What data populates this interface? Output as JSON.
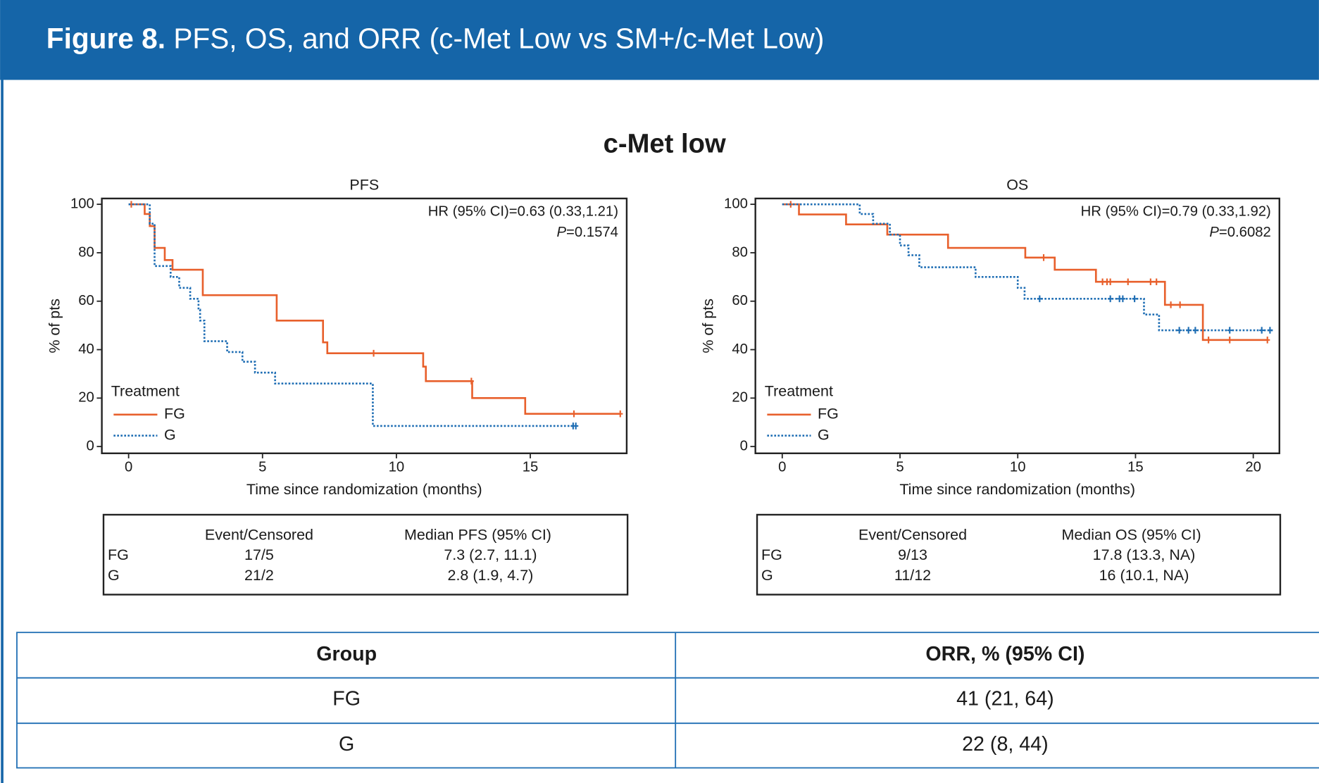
{
  "header": {
    "label": "Figure 8.",
    "title": "PFS, OS, and ORR (c-Met Low vs SM+/c-Met Low)"
  },
  "suptitle": "c-Met low",
  "chart_data": [
    {
      "type": "step",
      "title": "PFS",
      "xlabel": "Time since randomization (months)",
      "ylabel": "% of pts",
      "annotation": "HR (95% CI)=0.63 (0.33,1.21)",
      "p_value": "P=0.1574",
      "xlim": [
        -1.0,
        18.6
      ],
      "ylim": [
        -2.8,
        102.4
      ],
      "xticks": [
        0,
        5,
        10,
        15
      ],
      "yticks": [
        0,
        20,
        40,
        60,
        80,
        100
      ],
      "legend_title": "Treatment",
      "legend": "lower left",
      "series": [
        {
          "name": "FG",
          "color": "#e8602c",
          "dash": "solid",
          "x": [
            0,
            0.6,
            0.79,
            0.97,
            1.35,
            1.64,
            2.77,
            5.53,
            7.26,
            7.42,
            11.0,
            11.1,
            12.83,
            14.81,
            18.36
          ],
          "y": [
            100,
            96,
            91,
            82,
            77,
            73,
            62.5,
            52,
            43,
            38.5,
            33,
            27,
            20,
            13.5,
            13.5
          ],
          "censored_x": [
            0.1,
            9.15,
            12.8,
            16.63,
            18.36
          ],
          "censored_y": [
            100,
            38.5,
            27,
            13.5,
            13.5
          ]
        },
        {
          "name": "G",
          "color": "#1f6eb4",
          "dash": "dotted",
          "x": [
            0,
            0.79,
            0.97,
            1.57,
            1.89,
            2.3,
            2.61,
            2.67,
            2.83,
            3.68,
            4.25,
            4.72,
            5.47,
            9.12,
            16.63
          ],
          "y": [
            100,
            92,
            74.5,
            70,
            65.5,
            61,
            56.5,
            52,
            43.5,
            39,
            35,
            30.5,
            26,
            8.5,
            8.5
          ],
          "censored_x": [
            16.6,
            16.7
          ],
          "censored_y": [
            8.5,
            8.5
          ]
        }
      ],
      "table": {
        "columns": [
          "Event/Censored",
          "Median PFS (95% CI)"
        ],
        "rows": [
          [
            "FG",
            "17/5",
            "7.3 (2.7, 11.1)"
          ],
          [
            "G",
            "21/2",
            "2.8 (1.9, 4.7)"
          ]
        ]
      }
    },
    {
      "type": "step",
      "title": "OS",
      "xlabel": "Time since randomization (months)",
      "ylabel": "% of pts",
      "annotation": "HR (95% CI)=0.79 (0.33,1.92)",
      "p_value": "P=0.6082",
      "xlim": [
        -1.14,
        21.11
      ],
      "ylim": [
        -2.8,
        102.4
      ],
      "xticks": [
        0,
        5,
        10,
        15,
        20
      ],
      "yticks": [
        0,
        20,
        40,
        60,
        80,
        100
      ],
      "legend_title": "Treatment",
      "legend": "lower left",
      "series": [
        {
          "name": "FG",
          "color": "#e8602c",
          "dash": "solid",
          "x": [
            0,
            0.71,
            2.71,
            4.46,
            7.04,
            10.32,
            11.57,
            13.32,
            16.25,
            17.86,
            20.6
          ],
          "y": [
            100,
            95.8,
            91.7,
            87.5,
            82,
            78,
            73,
            68,
            58.5,
            44,
            44
          ],
          "censored_x": [
            0.36,
            11.1,
            13.6,
            13.79,
            13.93,
            14.68,
            15.64,
            15.89,
            16.5,
            16.89,
            18.1,
            19.0,
            20.6
          ],
          "censored_y": [
            100,
            78,
            68,
            68,
            68,
            68,
            68,
            68,
            58.5,
            58.5,
            44,
            44,
            44
          ]
        },
        {
          "name": "G",
          "color": "#1f6eb4",
          "dash": "dotted",
          "x": [
            0,
            3.29,
            3.86,
            4.57,
            5.0,
            5.36,
            5.82,
            8.21,
            10.0,
            10.29,
            15.36,
            16.0,
            20.9
          ],
          "y": [
            100,
            96,
            92,
            87.5,
            83,
            79,
            74,
            70,
            65.5,
            61,
            54.5,
            48,
            48
          ],
          "censored_x": [
            10.93,
            13.93,
            14.32,
            14.46,
            14.96,
            16.86,
            17.25,
            17.54,
            19.0,
            20.36,
            20.71
          ],
          "censored_y": [
            61,
            61,
            61,
            61,
            61,
            48,
            48,
            48,
            48,
            48,
            48
          ]
        }
      ],
      "table": {
        "columns": [
          "Event/Censored",
          "Median OS (95% CI)"
        ],
        "rows": [
          [
            "FG",
            "9/13",
            "17.8 (13.3, NA)"
          ],
          [
            "G",
            "11/12",
            "16 (10.1, NA)"
          ]
        ]
      }
    }
  ],
  "orr_table": {
    "header": [
      "Group",
      "ORR, % (95% CI)"
    ],
    "rows": [
      [
        "FG",
        "41 (21, 64)"
      ],
      [
        "G",
        "22 (8, 44)"
      ]
    ]
  }
}
